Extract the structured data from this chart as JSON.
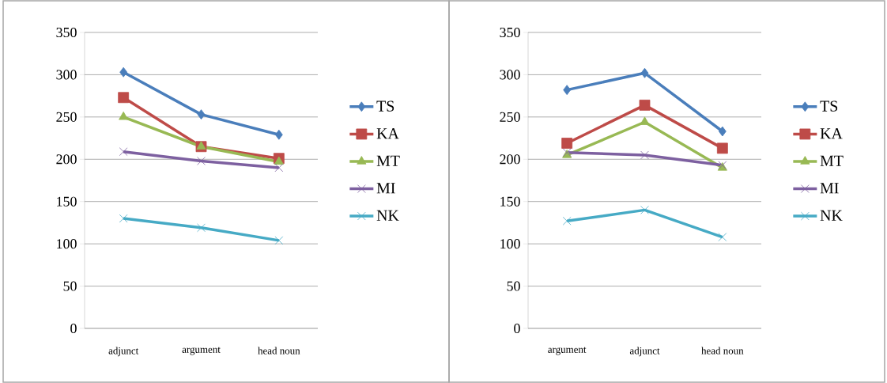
{
  "chart_data": [
    {
      "type": "line",
      "categories": [
        "adjunct",
        "argument",
        "head noun"
      ],
      "ylim": [
        0,
        350
      ],
      "yticks": [
        0,
        50,
        100,
        150,
        200,
        250,
        300,
        350
      ],
      "grid": "y",
      "legend": "right",
      "series": [
        {
          "name": "TS",
          "color": "#4a7ebb",
          "marker": "diamond",
          "values": [
            303,
            253,
            229
          ]
        },
        {
          "name": "KA",
          "color": "#be4b48",
          "marker": "square",
          "values": [
            273,
            215,
            201
          ]
        },
        {
          "name": "MT",
          "color": "#98b954",
          "marker": "triangle",
          "values": [
            250,
            215,
            197
          ]
        },
        {
          "name": "MI",
          "color": "#7d60a0",
          "marker": "cross",
          "values": [
            209,
            198,
            190
          ]
        },
        {
          "name": "NK",
          "color": "#46aac5",
          "marker": "cross",
          "values": [
            130,
            119,
            104
          ]
        }
      ]
    },
    {
      "type": "line",
      "categories": [
        "argument",
        "adjunct",
        "head noun"
      ],
      "ylim": [
        0,
        350
      ],
      "yticks": [
        0,
        50,
        100,
        150,
        200,
        250,
        300,
        350
      ],
      "grid": "y",
      "legend": "right",
      "series": [
        {
          "name": "TS",
          "color": "#4a7ebb",
          "marker": "diamond",
          "values": [
            282,
            302,
            233
          ]
        },
        {
          "name": "KA",
          "color": "#be4b48",
          "marker": "square",
          "values": [
            219,
            264,
            213
          ]
        },
        {
          "name": "MT",
          "color": "#98b954",
          "marker": "triangle",
          "values": [
            205,
            244,
            190
          ]
        },
        {
          "name": "MI",
          "color": "#7d60a0",
          "marker": "cross",
          "values": [
            208,
            205,
            193
          ]
        },
        {
          "name": "NK",
          "color": "#46aac5",
          "marker": "cross",
          "values": [
            127,
            140,
            108
          ]
        }
      ]
    }
  ]
}
